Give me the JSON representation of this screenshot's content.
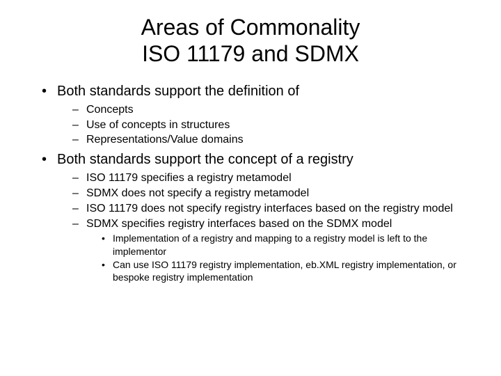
{
  "title_line1": "Areas of Commonality",
  "title_line2": "ISO 11179 and SDMX",
  "bullets": {
    "l1_a": "Both standards support the definition of",
    "l2_a1": "Concepts",
    "l2_a2": "Use of concepts in structures",
    "l2_a3": "Representations/Value domains",
    "l1_b": "Both standards support the concept of a registry",
    "l2_b1": "ISO 11179 specifies a registry metamodel",
    "l2_b2": "SDMX does not specify a registry metamodel",
    "l2_b3": "ISO 11179  does not specify registry interfaces based on the registry model",
    "l2_b4": "SDMX specifies registry interfaces based on the SDMX model",
    "l3_b4a": "Implementation of a registry and mapping to a registry model is left to the implementor",
    "l3_b4b": "Can use ISO 11179 registry implementation, eb.XML registry implementation, or bespoke registry implementation"
  },
  "colors": {
    "background": "#ffffff",
    "text": "#000000"
  },
  "fonts": {
    "family": "Arial",
    "title_size": 32,
    "l1_size": 20,
    "l2_size": 16,
    "l3_size": 14
  }
}
